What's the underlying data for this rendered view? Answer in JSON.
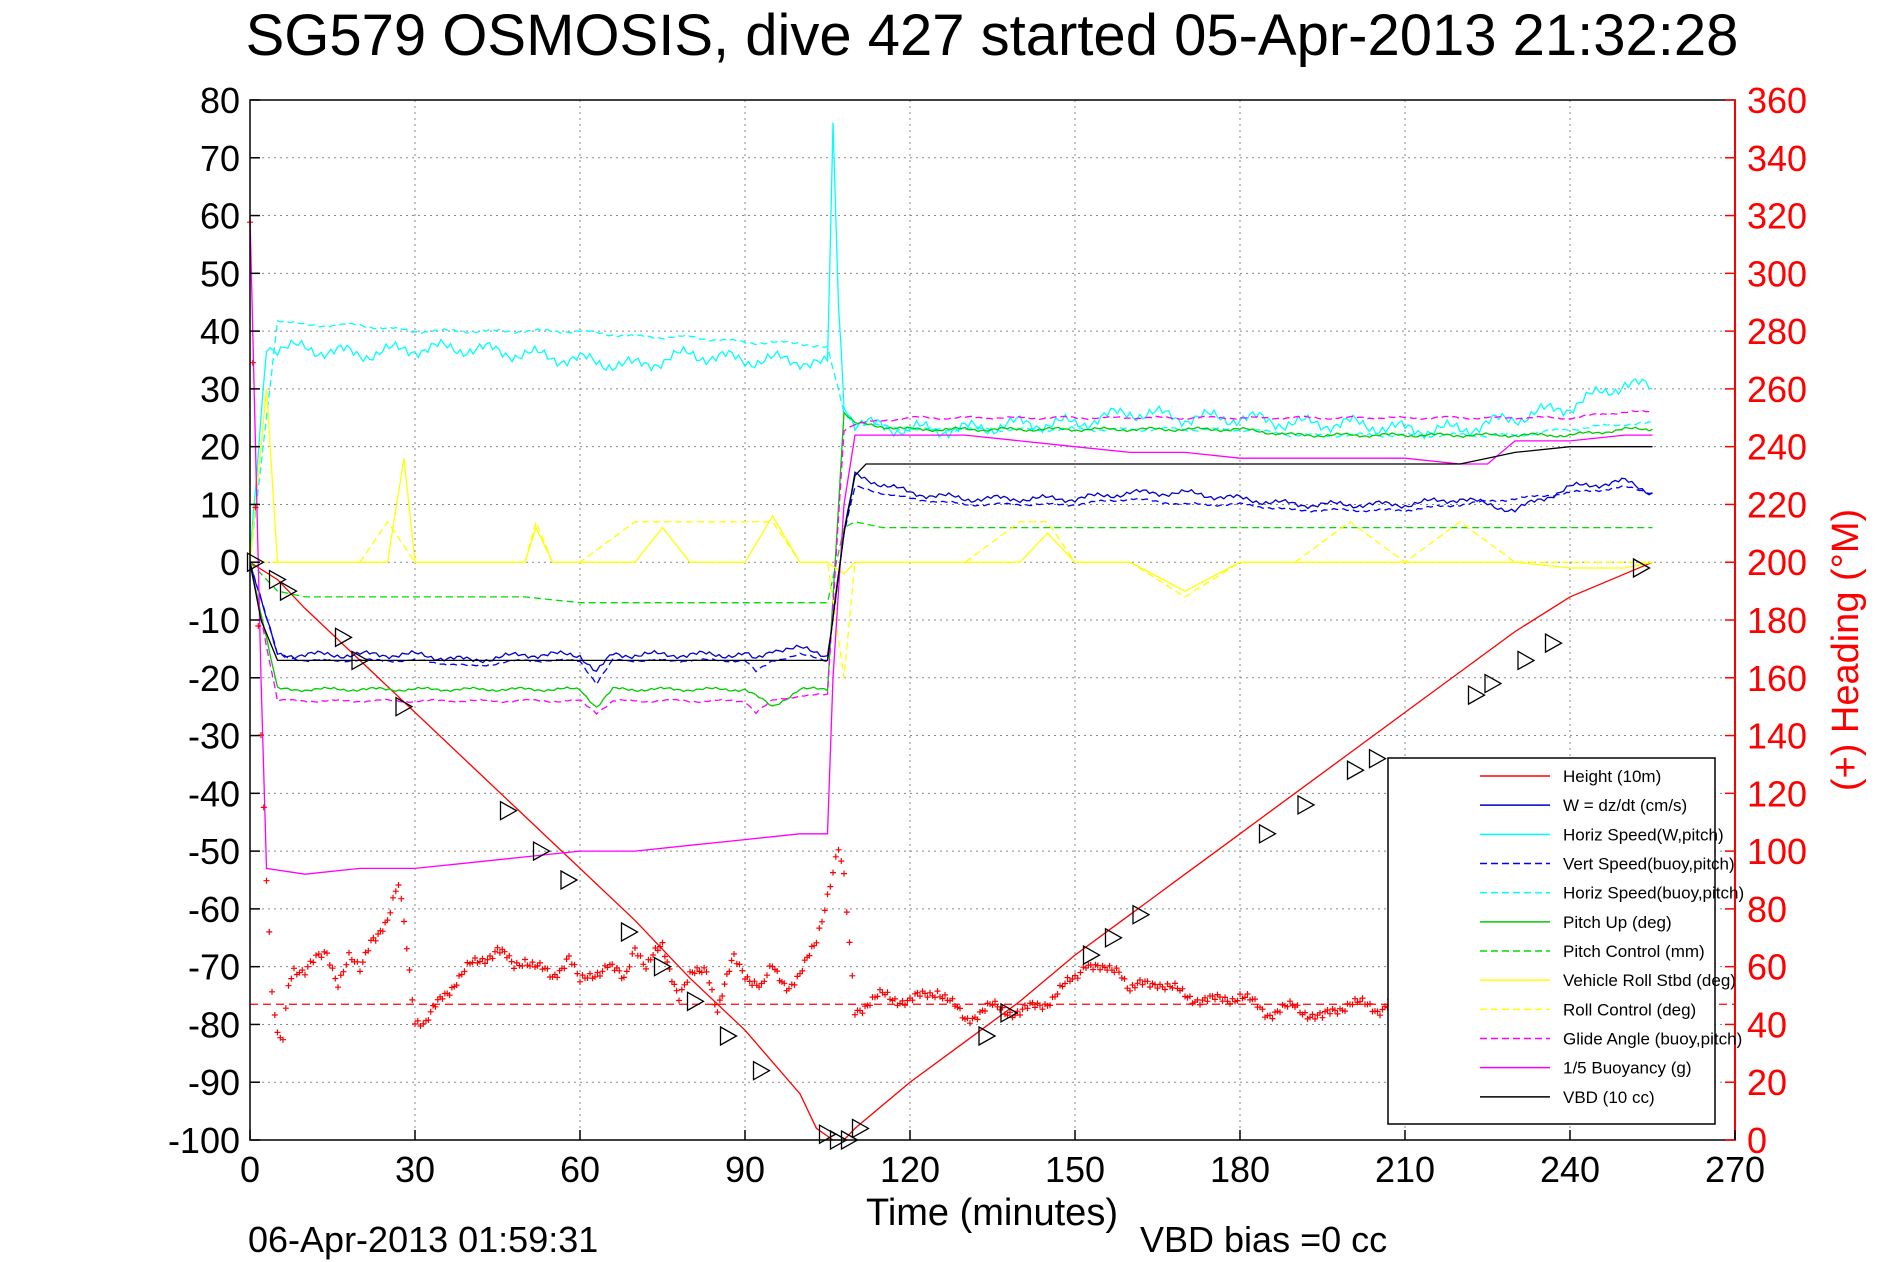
{
  "chart_data": {
    "type": "line",
    "title": "SG579 OSMOSIS, dive 427 started 05-Apr-2013 21:32:28",
    "xlabel": "Time (minutes)",
    "ylabel_right": "(+) Heading (°M)",
    "end_time_label": "06-Apr-2013 01:59:31",
    "vbd_bias_label": "VBD bias =0 cc",
    "xlim": [
      0,
      270
    ],
    "ylim": [
      -100,
      80
    ],
    "ylim_right": [
      0,
      360
    ],
    "xticks": [
      "0",
      "30",
      "60",
      "90",
      "120",
      "150",
      "180",
      "210",
      "240",
      "270"
    ],
    "yticks": [
      "80",
      "70",
      "60",
      "50",
      "40",
      "30",
      "20",
      "10",
      "0",
      "-10",
      "-20",
      "-30",
      "-40",
      "-50",
      "-60",
      "-70",
      "-80",
      "-90",
      "-100"
    ],
    "yticks_right": [
      "360",
      "340",
      "320",
      "300",
      "280",
      "260",
      "240",
      "220",
      "200",
      "180",
      "160",
      "140",
      "120",
      "100",
      "80",
      "60",
      "40",
      "20",
      "0"
    ],
    "grid": true,
    "legend_position": "bottom-right",
    "series": [
      {
        "name": "Height (10m)",
        "color": "#ff0000",
        "style": "solid",
        "x": [
          0,
          5,
          10,
          20,
          30,
          40,
          50,
          60,
          70,
          80,
          90,
          100,
          103,
          106,
          108,
          110,
          120,
          130,
          140,
          150,
          160,
          170,
          180,
          190,
          200,
          210,
          220,
          230,
          240,
          250,
          255
        ],
        "y": [
          0,
          -3,
          -8,
          -17,
          -26,
          -35,
          -44,
          -53,
          -62,
          -72,
          -81,
          -92,
          -98,
          -100,
          -100,
          -98,
          -90,
          -83,
          -76,
          -68,
          -61,
          -54,
          -47,
          -40,
          -33,
          -26,
          -19,
          -12,
          -6,
          -2,
          0
        ]
      },
      {
        "name": "W = dz/dt (cm/s)",
        "color": "#0000cc",
        "style": "solid",
        "x": [
          0,
          3,
          5,
          10,
          20,
          30,
          40,
          50,
          60,
          63,
          66,
          70,
          80,
          90,
          92,
          95,
          100,
          105,
          108,
          110,
          120,
          130,
          140,
          150,
          160,
          170,
          180,
          190,
          200,
          210,
          220,
          225,
          230,
          240,
          250,
          255
        ],
        "y": [
          0,
          -10,
          -16,
          -16,
          -16,
          -16,
          -17,
          -16,
          -16,
          -19,
          -16,
          -16,
          -16,
          -16,
          -17,
          -15,
          -15,
          -16,
          5,
          15,
          12,
          11,
          11,
          11,
          12,
          12,
          11,
          10,
          10,
          10,
          11,
          10,
          9,
          13,
          14,
          12
        ]
      },
      {
        "name": "Horiz Speed(W,pitch)",
        "color": "#00ffff",
        "style": "solid",
        "x": [
          0,
          3,
          5,
          10,
          20,
          30,
          40,
          50,
          60,
          70,
          80,
          90,
          100,
          105,
          106,
          107,
          108,
          110,
          120,
          130,
          140,
          150,
          160,
          170,
          180,
          190,
          200,
          210,
          220,
          230,
          240,
          250,
          255
        ],
        "y": [
          0,
          38,
          37,
          37,
          36,
          37,
          37,
          36,
          35,
          34,
          36,
          35,
          35,
          34,
          75,
          45,
          28,
          24,
          23,
          23,
          24,
          24,
          26,
          25,
          25,
          24,
          24,
          23,
          23,
          25,
          27,
          31,
          30
        ]
      },
      {
        "name": "Vert Speed(buoy,pitch)",
        "color": "#0000ff",
        "style": "dashed",
        "x": [
          0,
          5,
          10,
          20,
          30,
          40,
          50,
          60,
          63,
          66,
          70,
          80,
          90,
          92,
          95,
          100,
          105,
          108,
          110,
          120,
          130,
          140,
          150,
          160,
          170,
          180,
          190,
          200,
          210,
          220,
          230,
          240,
          250,
          255
        ],
        "y": [
          0,
          -16,
          -17,
          -17,
          -17,
          -18,
          -17,
          -17,
          -21,
          -17,
          -17,
          -17,
          -17,
          -19,
          -17,
          -16,
          -17,
          5,
          13,
          11,
          10,
          10,
          10,
          11,
          10,
          10,
          9,
          9,
          9,
          10,
          11,
          12,
          13,
          12
        ]
      },
      {
        "name": "Horiz Speed(buoy,pitch)",
        "color": "#00ffff",
        "style": "dashed",
        "x": [
          0,
          5,
          10,
          20,
          30,
          40,
          50,
          60,
          70,
          80,
          90,
          100,
          105,
          108,
          110,
          120,
          130,
          140,
          150,
          160,
          170,
          180,
          190,
          200,
          210,
          220,
          230,
          240,
          250,
          255
        ],
        "y": [
          0,
          42,
          41,
          41,
          40,
          40,
          40,
          40,
          39,
          39,
          38,
          38,
          37,
          26,
          24,
          23,
          23,
          23,
          23,
          23,
          23,
          23,
          22,
          22,
          22,
          22,
          22,
          23,
          24,
          24
        ]
      },
      {
        "name": "Pitch Up (deg)",
        "color": "#00cc00",
        "style": "solid",
        "x": [
          0,
          5,
          10,
          20,
          30,
          40,
          50,
          60,
          63,
          66,
          70,
          80,
          90,
          95,
          100,
          105,
          108,
          110,
          120,
          130,
          140,
          150,
          160,
          170,
          180,
          190,
          200,
          210,
          220,
          230,
          240,
          250,
          255
        ],
        "y": [
          0,
          -22,
          -22,
          -22,
          -22,
          -22,
          -22,
          -22,
          -25,
          -22,
          -22,
          -22,
          -22,
          -25,
          -22,
          -22,
          26,
          24,
          23,
          23,
          23,
          23,
          23,
          23,
          23,
          22,
          22,
          22,
          22,
          22,
          22,
          23,
          23
        ]
      },
      {
        "name": "Pitch Control (mm)",
        "color": "#00dd00",
        "style": "dashed",
        "x": [
          0,
          5,
          10,
          20,
          30,
          40,
          50,
          60,
          70,
          80,
          90,
          100,
          105,
          108,
          110,
          115,
          120,
          130,
          140,
          150,
          160,
          170,
          180,
          190,
          200,
          210,
          220,
          230,
          240,
          250,
          255
        ],
        "y": [
          0,
          -5,
          -6,
          -6,
          -6,
          -6,
          -6,
          -7,
          -7,
          -7,
          -7,
          -7,
          -7,
          6,
          7,
          6,
          6,
          6,
          6,
          6,
          6,
          6,
          6,
          6,
          6,
          6,
          6,
          6,
          6,
          6,
          6
        ]
      },
      {
        "name": "Vehicle Roll Stbd (deg)",
        "color": "#ffff00",
        "style": "solid",
        "x": [
          0,
          3,
          5,
          10,
          15,
          20,
          25,
          28,
          30,
          35,
          40,
          50,
          52,
          55,
          60,
          70,
          75,
          80,
          90,
          95,
          100,
          105,
          108,
          110,
          120,
          130,
          140,
          145,
          150,
          160,
          170,
          180,
          190,
          200,
          210,
          220,
          230,
          240,
          250,
          255
        ],
        "y": [
          0,
          30,
          0,
          0,
          0,
          0,
          0,
          18,
          0,
          0,
          0,
          0,
          6,
          0,
          0,
          0,
          6,
          0,
          0,
          8,
          0,
          0,
          -2,
          0,
          0,
          0,
          0,
          5,
          0,
          0,
          -5,
          0,
          0,
          0,
          0,
          0,
          0,
          -1,
          -1,
          0
        ]
      },
      {
        "name": "Roll Control (deg)",
        "color": "#ffff00",
        "style": "dashed",
        "x": [
          0,
          5,
          10,
          20,
          25,
          30,
          40,
          50,
          52,
          55,
          60,
          70,
          80,
          90,
          95,
          100,
          105,
          108,
          110,
          120,
          130,
          140,
          145,
          150,
          160,
          170,
          180,
          190,
          200,
          210,
          220,
          230,
          240,
          250,
          255
        ],
        "y": [
          0,
          0,
          0,
          0,
          7,
          0,
          0,
          0,
          7,
          0,
          0,
          7,
          7,
          7,
          7,
          0,
          0,
          -20,
          0,
          0,
          0,
          7,
          7,
          0,
          0,
          -6,
          0,
          0,
          7,
          0,
          7,
          0,
          0,
          0,
          0
        ]
      },
      {
        "name": "Glide Angle (buoy,pitch)",
        "color": "#ff00ff",
        "style": "dashed",
        "x": [
          0,
          5,
          10,
          20,
          30,
          40,
          50,
          60,
          63,
          66,
          70,
          80,
          90,
          92,
          95,
          100,
          105,
          108,
          110,
          120,
          130,
          140,
          150,
          160,
          170,
          180,
          190,
          200,
          210,
          220,
          230,
          240,
          250,
          255
        ],
        "y": [
          0,
          -24,
          -24,
          -24,
          -24,
          -24,
          -24,
          -24,
          -26,
          -24,
          -24,
          -24,
          -24,
          -26,
          -24,
          -23,
          -23,
          23,
          24,
          25,
          25,
          25,
          25,
          25,
          25,
          25,
          25,
          25,
          25,
          25,
          25,
          25,
          26,
          26
        ]
      },
      {
        "name": "1/5 Buoyancy (g)",
        "color": "#ff00ff",
        "style": "solid",
        "x": [
          0,
          1,
          2,
          3,
          10,
          20,
          30,
          40,
          50,
          60,
          70,
          80,
          90,
          100,
          105,
          106,
          108,
          110,
          120,
          130,
          140,
          150,
          160,
          170,
          180,
          190,
          200,
          210,
          220,
          225,
          230,
          240,
          250,
          255
        ],
        "y": [
          60,
          20,
          -20,
          -53,
          -54,
          -53,
          -53,
          -52,
          -51,
          -50,
          -50,
          -49,
          -48,
          -47,
          -47,
          -20,
          10,
          22,
          22,
          22,
          21,
          20,
          19,
          19,
          18,
          18,
          18,
          18,
          17,
          17,
          21,
          21,
          22,
          22
        ]
      },
      {
        "name": "VBD (10 cc)",
        "color": "#000000",
        "style": "solid",
        "x": [
          0,
          2,
          5,
          10,
          20,
          30,
          40,
          50,
          60,
          70,
          80,
          90,
          100,
          105,
          108,
          110,
          112,
          120,
          130,
          140,
          150,
          160,
          170,
          180,
          190,
          200,
          210,
          220,
          225,
          230,
          240,
          250,
          255
        ],
        "y": [
          0,
          -10,
          -17,
          -17,
          -17,
          -17,
          -17,
          -17,
          -17,
          -17,
          -17,
          -17,
          -17,
          -17,
          5,
          15,
          17,
          17,
          17,
          17,
          17,
          17,
          17,
          17,
          17,
          17,
          17,
          17,
          18,
          19,
          20,
          20,
          20
        ]
      }
    ],
    "heading": {
      "name": "Heading",
      "color": "#ff0000",
      "marker": "+",
      "axis": "right",
      "mean": 47,
      "x": [
        0,
        1,
        2,
        3,
        4,
        5,
        6,
        7,
        8,
        10,
        12,
        14,
        16,
        18,
        20,
        22,
        25,
        27,
        28,
        30,
        32,
        35,
        38,
        40,
        45,
        48,
        50,
        55,
        58,
        60,
        65,
        68,
        70,
        72,
        75,
        78,
        80,
        83,
        85,
        88,
        90,
        93,
        95,
        98,
        100,
        103,
        105,
        107,
        108,
        110,
        115,
        120,
        125,
        130,
        135,
        140,
        145,
        150,
        152,
        155,
        158,
        160,
        165,
        170,
        175,
        180,
        185,
        190,
        195,
        200,
        205,
        210,
        215,
        220,
        225,
        230,
        235,
        240,
        245,
        250
      ],
      "y": [
        320,
        220,
        140,
        90,
        50,
        35,
        35,
        55,
        60,
        58,
        62,
        65,
        55,
        63,
        58,
        70,
        75,
        88,
        76,
        42,
        40,
        50,
        56,
        60,
        66,
        60,
        63,
        56,
        64,
        54,
        61,
        55,
        68,
        60,
        67,
        50,
        56,
        60,
        45,
        63,
        58,
        52,
        60,
        53,
        56,
        70,
        85,
        100,
        90,
        45,
        50,
        48,
        52,
        42,
        46,
        44,
        48,
        56,
        62,
        58,
        60,
        52,
        55,
        50,
        48,
        50,
        44,
        46,
        42,
        48,
        45,
        52,
        55,
        48,
        44,
        50,
        53,
        47,
        50,
        46
      ]
    },
    "height_markers": {
      "x": [
        1,
        5,
        7,
        17,
        20,
        28,
        47,
        53,
        58,
        69,
        75,
        81,
        87,
        93,
        105,
        107,
        109,
        111,
        134,
        138,
        153,
        157,
        162,
        185,
        192,
        201,
        205,
        223,
        226,
        232,
        237,
        253
      ],
      "y": [
        0,
        -3,
        -5,
        -13,
        -17,
        -25,
        -43,
        -50,
        -55,
        -64,
        -70,
        -76,
        -82,
        -88,
        -99,
        -100,
        -100,
        -98,
        -82,
        -78,
        -68,
        -65,
        -61,
        -47,
        -42,
        -36,
        -34,
        -23,
        -21,
        -17,
        -14,
        -1
      ]
    }
  }
}
